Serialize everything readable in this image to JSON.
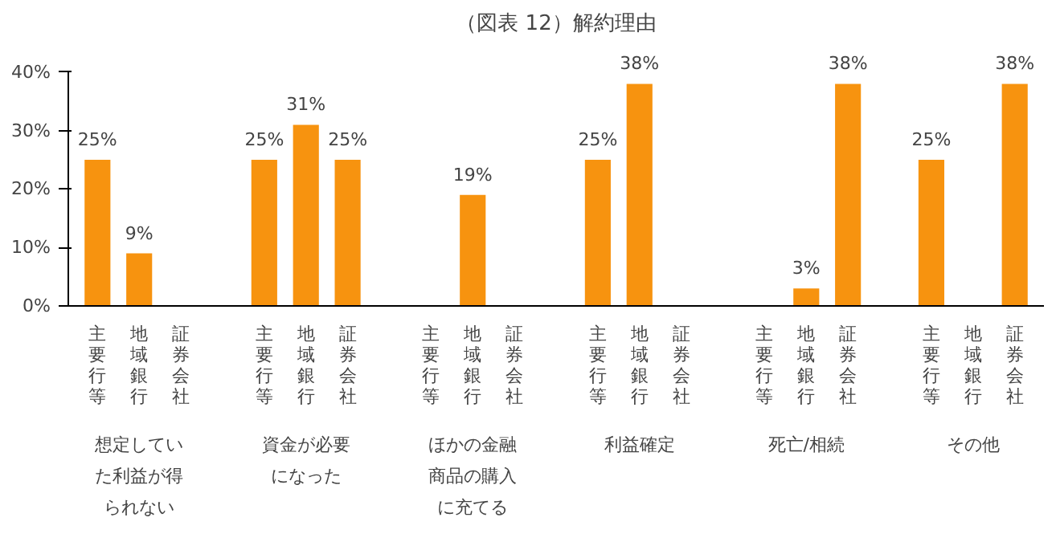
{
  "chart_data": {
    "type": "bar",
    "title": "（図表 12）解約理由",
    "categories": [
      "主要行等",
      "地域銀行",
      "証券会社",
      "主要行等",
      "地域銀行",
      "証券会社",
      "主要行等",
      "地域銀行",
      "証券会社",
      "主要行等",
      "地域銀行",
      "証券会社",
      "主要行等",
      "地域銀行",
      "証券会社",
      "主要行等",
      "地域銀行",
      "証券会社"
    ],
    "values": [
      25,
      9,
      null,
      25,
      31,
      25,
      null,
      19,
      null,
      25,
      38,
      null,
      null,
      3,
      38,
      25,
      null,
      38
    ],
    "value_labels": [
      "25%",
      "9%",
      null,
      "25%",
      "31%",
      "25%",
      null,
      "19%",
      null,
      "25%",
      "38%",
      null,
      null,
      "3%",
      "38%",
      "25%",
      null,
      "38%"
    ],
    "color": "#f7930f",
    "ylim": [
      0,
      40
    ],
    "yticks": [
      {
        "value": 0,
        "label": "0%"
      },
      {
        "value": 10,
        "label": "10%"
      },
      {
        "value": 20,
        "label": "20%"
      },
      {
        "value": 30,
        "label": "30%"
      },
      {
        "value": 40,
        "label": "40%"
      }
    ],
    "annotations": [
      "想定していた利益が得られない",
      "資金が必要になった",
      "ほかの金融商品の購入に充てる",
      "利益確定",
      "死亡/相続",
      "その他"
    ],
    "grid": false
  }
}
